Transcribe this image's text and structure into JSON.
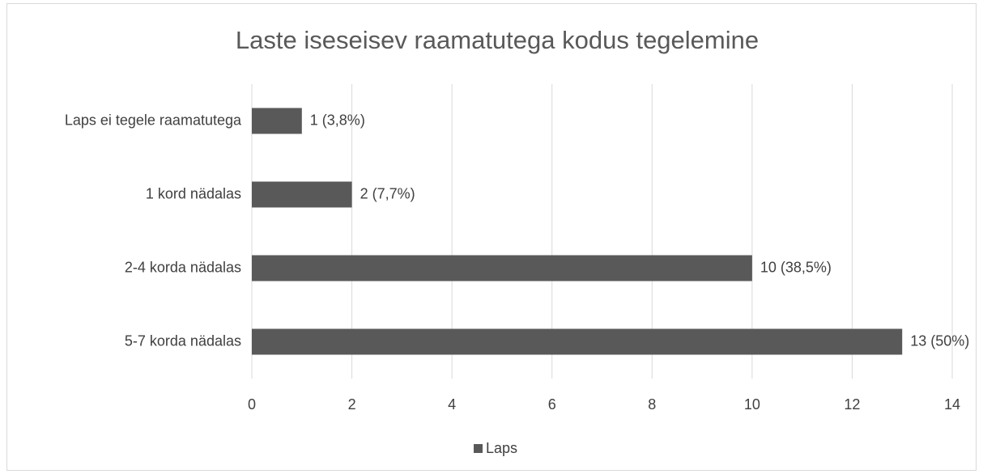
{
  "chart_data": {
    "type": "bar",
    "orientation": "horizontal",
    "title": "Laste iseseisev raamatutega kodus tegelemine",
    "categories": [
      "Laps ei tegele raamatutega",
      "1 kord nädalas",
      "2-4 korda nädalas",
      "5-7 korda nädalas"
    ],
    "series": [
      {
        "name": "Laps",
        "color": "#595959",
        "values": [
          1,
          2,
          10,
          13
        ],
        "value_labels": [
          "1 (3,8%)",
          "2 (7,7%)",
          "10 (38,5%)",
          "13 (50%)"
        ]
      }
    ],
    "xlim": [
      0,
      14
    ],
    "xticks": [
      0,
      2,
      4,
      6,
      8,
      10,
      12,
      14
    ],
    "grid": true,
    "legend": "bottom"
  }
}
